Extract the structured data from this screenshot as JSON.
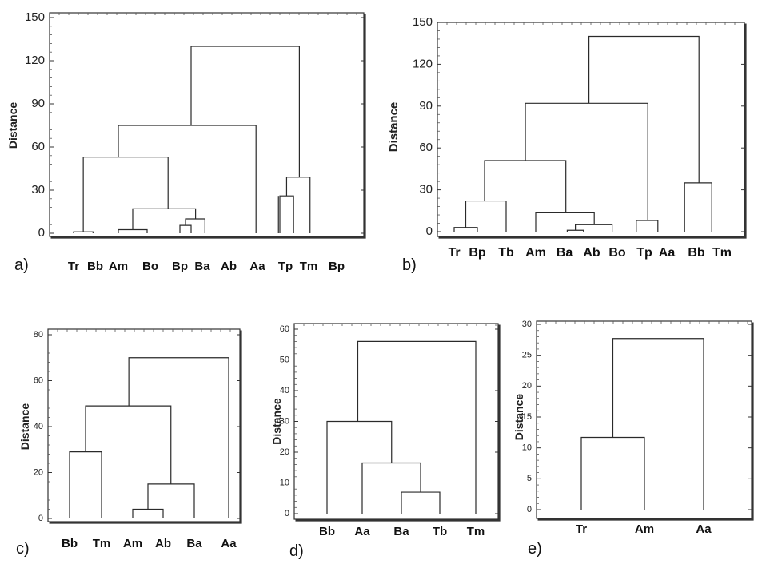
{
  "chart_data": [
    {
      "type": "dendrogram",
      "panel_label": "a)",
      "ylabel": "Distance",
      "ylim": [
        0,
        150
      ],
      "yticks": [
        0,
        30,
        60,
        90,
        120,
        150
      ],
      "leaves": [
        "Tr",
        "Bb",
        "Am",
        "Bo",
        "Bp",
        "Ba",
        "Ab",
        "Aa",
        "Tp",
        "Tm",
        "Bp"
      ],
      "merges": [
        {
          "x1": 0.0,
          "x2": 0.9,
          "height": 1.0
        },
        {
          "x1": 2.0,
          "x2": 2.9,
          "height": 2.5
        },
        {
          "x1": 4.0,
          "x2": 4.5,
          "height": 5.5
        },
        {
          "x1": 4.25,
          "x2": 5.1,
          "height": 10.0
        },
        {
          "x1": 2.45,
          "x2": 4.7,
          "height": 17.0
        },
        {
          "x1": 0.45,
          "x2": 3.6,
          "height": 53.0
        },
        {
          "x1": 2.0,
          "x2": 6.95,
          "height": 75.0
        },
        {
          "x1": 7.8,
          "x2": 8.35,
          "height": 26.0
        },
        {
          "x1": 8.05,
          "x2": 9.05,
          "height": 39.0
        },
        {
          "x1": 4.5,
          "x2": 8.6,
          "height": 130.0
        }
      ],
      "hang": [
        {
          "x": 7.75,
          "low": 0.0,
          "high": 26.0
        }
      ]
    },
    {
      "type": "dendrogram",
      "panel_label": "b)",
      "ylabel": "Distance",
      "ylim": [
        0,
        150
      ],
      "yticks": [
        0,
        30,
        60,
        90,
        120,
        150
      ],
      "leaves": [
        "Tr",
        "Bp",
        "Tb",
        "Am",
        "Ba",
        "Ab",
        "Bo",
        "Tp",
        "Aa",
        "Bb",
        "Tm"
      ],
      "merges": [
        {
          "x1": 0.0,
          "x2": 1.0,
          "height": 3.0
        },
        {
          "x1": 0.5,
          "x2": 2.0,
          "height": 22.0
        },
        {
          "x1": 4.1,
          "x2": 4.7,
          "height": 1.0
        },
        {
          "x1": 4.4,
          "x2": 5.8,
          "height": 5.0
        },
        {
          "x1": 3.0,
          "x2": 5.1,
          "height": 14.0
        },
        {
          "x1": 1.25,
          "x2": 4.05,
          "height": 51.0
        },
        {
          "x1": 6.7,
          "x2": 7.6,
          "height": 8.0
        },
        {
          "x1": 2.65,
          "x2": 7.15,
          "height": 92.0
        },
        {
          "x1": 8.6,
          "x2": 9.6,
          "height": 35.0
        },
        {
          "x1": 4.9,
          "x2": 9.1,
          "height": 140.0
        }
      ],
      "hang": []
    },
    {
      "type": "dendrogram",
      "panel_label": "c)",
      "ylabel": "Distance",
      "ylim": [
        0,
        80
      ],
      "yticks": [
        0,
        20,
        40,
        60,
        80
      ],
      "leaves": [
        "Bb",
        "Tm",
        "Am",
        "Ab",
        "Ba",
        "Aa"
      ],
      "merges": [
        {
          "x1": 0.0,
          "x2": 1.0,
          "height": 29.0
        },
        {
          "x1": 2.0,
          "x2": 3.0,
          "height": 4.0
        },
        {
          "x1": 2.5,
          "x2": 4.0,
          "height": 15.0
        },
        {
          "x1": 0.5,
          "x2": 3.25,
          "height": 49.0
        },
        {
          "x1": 1.875,
          "x2": 5.0,
          "height": 70.0
        }
      ],
      "hang": []
    },
    {
      "type": "dendrogram",
      "panel_label": "d)",
      "ylabel": "Distance",
      "ylim": [
        0,
        60
      ],
      "yticks": [
        0,
        10,
        20,
        30,
        40,
        50,
        60
      ],
      "leaves": [
        "Bb",
        "Aa",
        "Ba",
        "Tb",
        "Tm"
      ],
      "merges": [
        {
          "x1": 2.0,
          "x2": 3.0,
          "height": 7.0
        },
        {
          "x1": 1.0,
          "x2": 2.5,
          "height": 16.5
        },
        {
          "x1": 0.0,
          "x2": 1.75,
          "height": 30.0
        },
        {
          "x1": 0.875,
          "x2": 4.0,
          "height": 56.0
        }
      ],
      "hang": []
    },
    {
      "type": "dendrogram",
      "panel_label": "e)",
      "ylabel": "Distance",
      "ylim": [
        0,
        30
      ],
      "yticks": [
        0,
        5,
        10,
        15,
        20,
        25,
        30
      ],
      "leaves": [
        "Tr",
        "Am",
        "Aa"
      ],
      "merges": [
        {
          "x1": 0.0,
          "x2": 1.0,
          "height": 11.7
        },
        {
          "x1": 0.5,
          "x2": 2.0,
          "height": 27.7
        }
      ],
      "hang": []
    }
  ]
}
